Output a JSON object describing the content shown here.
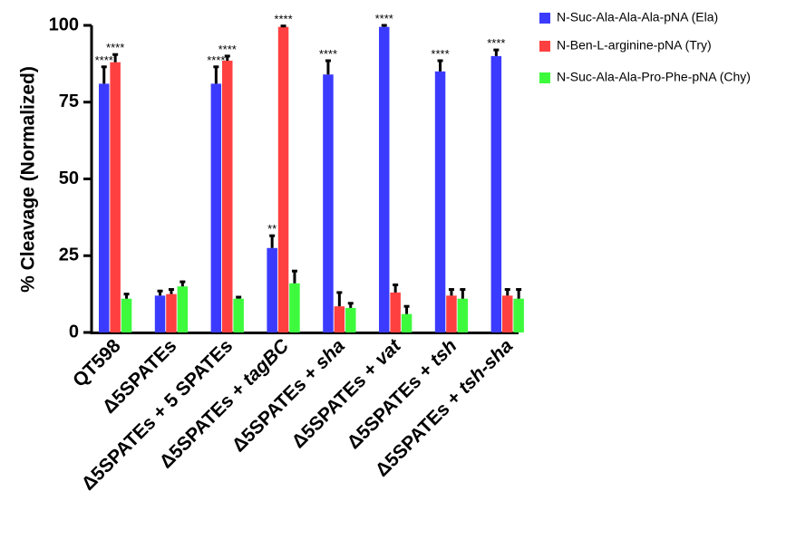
{
  "chart_data": {
    "type": "bar",
    "ylabel": "% Cleavage (Normalized)",
    "ylim": [
      0,
      100
    ],
    "yticks": [
      0,
      25,
      50,
      75,
      100
    ],
    "legend_position": "top-right",
    "categories": [
      {
        "prefix": "QT598",
        "suffix": ""
      },
      {
        "prefix": "Δ5SPATEs",
        "suffix": ""
      },
      {
        "prefix": "Δ5SPATEs + 5 SPATEs",
        "suffix": ""
      },
      {
        "prefix": "Δ5SPATEs + ",
        "suffix": "tagBC"
      },
      {
        "prefix": "Δ5SPATEs + ",
        "suffix": "sha"
      },
      {
        "prefix": "Δ5SPATEs + ",
        "suffix": "vat"
      },
      {
        "prefix": "Δ5SPATEs + ",
        "suffix": "tsh"
      },
      {
        "prefix": "Δ5SPATEs + ",
        "suffix": "tsh-sha"
      }
    ],
    "series": [
      {
        "name": "N-Suc-Ala-Ala-Ala-pNA (Ela)",
        "color": "#3b3bff",
        "values": [
          81,
          12,
          81,
          27.5,
          84,
          99.5,
          85,
          90
        ],
        "errors": [
          5.5,
          1.5,
          5.5,
          4,
          4.5,
          0.5,
          3.5,
          2
        ],
        "significance": [
          "****",
          "",
          "****",
          "**",
          "****",
          "****",
          "****",
          "****"
        ]
      },
      {
        "name": "N-Ben-L-arginine-pNA (Try)",
        "color": "#ff4040",
        "values": [
          88,
          12.5,
          88.5,
          99.5,
          8.5,
          13,
          12,
          12
        ],
        "errors": [
          2.5,
          1.5,
          1.5,
          0.3,
          4.5,
          2.5,
          2,
          2
        ],
        "significance": [
          "****",
          "",
          "****",
          "****",
          "",
          "",
          "",
          ""
        ]
      },
      {
        "name": "N-Suc-Ala-Ala-Pro-Phe-pNA (Chy)",
        "color": "#3dfa3d",
        "values": [
          11,
          15,
          11,
          16,
          8,
          6,
          11,
          11
        ],
        "errors": [
          1.5,
          1.5,
          0.5,
          4,
          1.5,
          2.5,
          3,
          3
        ],
        "significance": [
          "",
          "",
          "",
          "",
          "",
          "",
          "",
          ""
        ]
      }
    ]
  }
}
